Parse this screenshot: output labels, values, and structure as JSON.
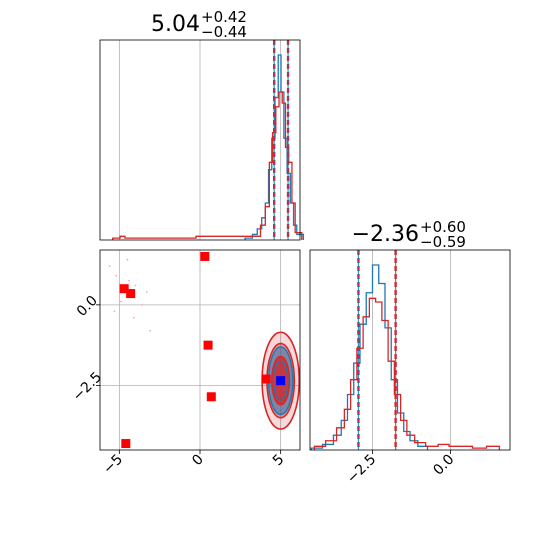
{
  "chart_data": {
    "type": "corner",
    "colors": {
      "blue": "#1f77b4",
      "red": "#d62728",
      "purple": "#6a3d6e",
      "marker_red": "#ff0000",
      "marker_blue": "#0000ff",
      "grid": "#b0b0b0"
    },
    "grid": true,
    "params": [
      {
        "name": "param_1",
        "median": 5.04,
        "plus": 0.42,
        "minus": 0.44,
        "title_main": "5.04",
        "title_plus": "+0.42",
        "title_minus": "−0.44",
        "xlim": [
          -6.2,
          6.2
        ],
        "xticks": [
          {
            "value": -5,
            "label": "−5"
          },
          {
            "value": 0,
            "label": "0"
          },
          {
            "value": 5,
            "label": "5"
          }
        ]
      },
      {
        "name": "param_2",
        "median": -2.36,
        "plus": 0.6,
        "minus": 0.59,
        "title_main": "−2.36",
        "title_plus": "+0.60",
        "title_minus": "−0.59",
        "xlim": [
          -4.5,
          1.9
        ],
        "xticks": [
          {
            "value": -2.5,
            "label": "−2.5"
          },
          {
            "value": 0.0,
            "label": "0.0"
          }
        ]
      }
    ],
    "joint_ylim": [
      -4.5,
      1.7
    ],
    "joint_yticks": [
      {
        "value": 0.0,
        "label": "0.0"
      },
      {
        "value": -2.5,
        "label": "−2.5"
      }
    ],
    "hist1_blue": [
      {
        "x": 3.1,
        "y": 0.01
      },
      {
        "x": 3.4,
        "y": 0.03
      },
      {
        "x": 3.7,
        "y": 0.06
      },
      {
        "x": 3.95,
        "y": 0.12
      },
      {
        "x": 4.15,
        "y": 0.2
      },
      {
        "x": 4.35,
        "y": 0.38
      },
      {
        "x": 4.55,
        "y": 0.55
      },
      {
        "x": 4.75,
        "y": 0.77
      },
      {
        "x": 4.95,
        "y": 1.0
      },
      {
        "x": 5.1,
        "y": 0.8
      },
      {
        "x": 5.3,
        "y": 0.55
      },
      {
        "x": 5.5,
        "y": 0.36
      },
      {
        "x": 5.7,
        "y": 0.2
      },
      {
        "x": 5.9,
        "y": 0.08
      },
      {
        "x": 6.1,
        "y": 0.03
      }
    ],
    "hist1_red": [
      {
        "x": -5.1,
        "y": 0.01
      },
      {
        "x": -4.8,
        "y": 0.02
      },
      {
        "x": -4.5,
        "y": 0.01
      },
      {
        "x": -4.1,
        "y": 0.01
      },
      {
        "x": 3.6,
        "y": 0.02
      },
      {
        "x": 3.9,
        "y": 0.08
      },
      {
        "x": 4.2,
        "y": 0.18
      },
      {
        "x": 4.4,
        "y": 0.42
      },
      {
        "x": 4.6,
        "y": 0.58
      },
      {
        "x": 4.8,
        "y": 0.72
      },
      {
        "x": 5.0,
        "y": 0.8
      },
      {
        "x": 5.2,
        "y": 0.74
      },
      {
        "x": 5.4,
        "y": 0.5
      },
      {
        "x": 5.6,
        "y": 0.42
      },
      {
        "x": 5.8,
        "y": 0.2
      },
      {
        "x": 6.0,
        "y": 0.04
      }
    ],
    "hist2_blue": [
      {
        "x": -4.3,
        "y": 0.01
      },
      {
        "x": -3.9,
        "y": 0.03
      },
      {
        "x": -3.6,
        "y": 0.08
      },
      {
        "x": -3.4,
        "y": 0.16
      },
      {
        "x": -3.2,
        "y": 0.3
      },
      {
        "x": -3.0,
        "y": 0.47
      },
      {
        "x": -2.8,
        "y": 0.68
      },
      {
        "x": -2.6,
        "y": 0.85
      },
      {
        "x": -2.4,
        "y": 1.0
      },
      {
        "x": -2.2,
        "y": 0.9
      },
      {
        "x": -2.0,
        "y": 0.66
      },
      {
        "x": -1.8,
        "y": 0.38
      },
      {
        "x": -1.6,
        "y": 0.2
      },
      {
        "x": -1.4,
        "y": 0.1
      },
      {
        "x": -1.2,
        "y": 0.05
      },
      {
        "x": -0.9,
        "y": 0.02
      }
    ],
    "hist2_red": [
      {
        "x": -4.2,
        "y": 0.02
      },
      {
        "x": -3.8,
        "y": 0.05
      },
      {
        "x": -3.5,
        "y": 0.12
      },
      {
        "x": -3.3,
        "y": 0.22
      },
      {
        "x": -3.1,
        "y": 0.38
      },
      {
        "x": -2.9,
        "y": 0.55
      },
      {
        "x": -2.7,
        "y": 0.72
      },
      {
        "x": -2.5,
        "y": 0.82
      },
      {
        "x": -2.3,
        "y": 0.8
      },
      {
        "x": -2.1,
        "y": 0.7
      },
      {
        "x": -1.9,
        "y": 0.48
      },
      {
        "x": -1.7,
        "y": 0.3
      },
      {
        "x": -1.5,
        "y": 0.16
      },
      {
        "x": -1.3,
        "y": 0.08
      },
      {
        "x": -1.0,
        "y": 0.04
      },
      {
        "x": -0.6,
        "y": 0.02
      },
      {
        "x": -0.2,
        "y": 0.03
      },
      {
        "x": 0.1,
        "y": 0.02
      },
      {
        "x": 0.5,
        "y": 0.02
      },
      {
        "x": 0.9,
        "y": 0.01
      },
      {
        "x": 1.4,
        "y": 0.02
      }
    ],
    "quantile_lines_1": [
      4.6,
      5.46
    ],
    "quantile_lines_2": [
      -2.95,
      -1.76
    ],
    "red_points": [
      {
        "x": 0.3,
        "y": 1.5
      },
      {
        "x": -4.7,
        "y": 0.5
      },
      {
        "x": -4.3,
        "y": 0.35
      },
      {
        "x": 0.5,
        "y": -1.25
      },
      {
        "x": 0.7,
        "y": -2.85
      },
      {
        "x": -4.6,
        "y": -4.3
      },
      {
        "x": 4.1,
        "y": -2.3
      }
    ],
    "blue_points": [
      {
        "x": 5.0,
        "y": -2.35
      }
    ],
    "contours": {
      "center": {
        "x": 5.0,
        "y": -2.35
      },
      "red_sigma": [
        0.55,
        0.85,
        1.15
      ],
      "red_sigma_y": [
        0.75,
        1.15,
        1.5
      ],
      "blue_sigma": [
        0.45,
        0.75
      ],
      "blue_sigma_y": [
        0.6,
        1.05
      ]
    },
    "faint_points": [
      {
        "x": -5.6,
        "y": 1.2
      },
      {
        "x": -5.2,
        "y": 0.9
      },
      {
        "x": -4.9,
        "y": 0.1
      },
      {
        "x": -4.4,
        "y": 0.75
      },
      {
        "x": -4.0,
        "y": 0.6
      },
      {
        "x": -3.6,
        "y": 0.0
      },
      {
        "x": -3.3,
        "y": 0.4
      },
      {
        "x": -4.1,
        "y": -0.4
      },
      {
        "x": -3.1,
        "y": -0.8
      },
      {
        "x": -5.3,
        "y": -0.2
      },
      {
        "x": -4.5,
        "y": 1.4
      }
    ]
  }
}
